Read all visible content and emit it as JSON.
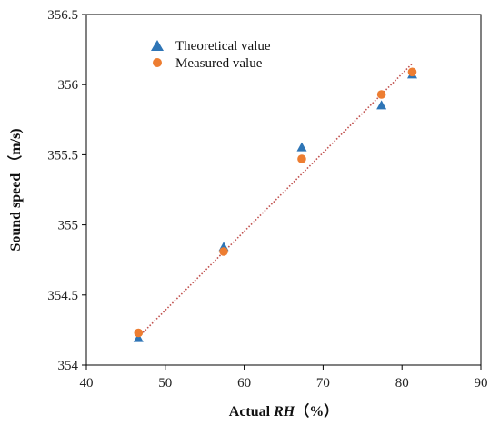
{
  "chart_data": {
    "type": "scatter",
    "xlabel_prefix": "Actual ",
    "xlabel_italic": "RH",
    "xlabel_suffix": "（%）",
    "ylabel": "Sound speed （m/s)",
    "xlim": [
      40,
      90
    ],
    "ylim": [
      354,
      356.5
    ],
    "xticks": [
      "40",
      "50",
      "60",
      "70",
      "80",
      "90"
    ],
    "yticks": [
      "354",
      "354.5",
      "355",
      "355.5",
      "356",
      "356.5"
    ],
    "legend_position": "top-left",
    "series": [
      {
        "name": "Theoretical value",
        "marker": "triangle",
        "color": "#2e75b6",
        "x": [
          46.6,
          57.4,
          67.3,
          77.4,
          81.3
        ],
        "y": [
          354.19,
          354.84,
          355.55,
          355.85,
          356.07
        ]
      },
      {
        "name": "Measured value",
        "marker": "circle",
        "color": "#ed7d31",
        "x": [
          46.6,
          57.4,
          67.3,
          77.4,
          81.3
        ],
        "y": [
          354.23,
          354.81,
          355.47,
          355.93,
          356.09
        ]
      }
    ],
    "trendline": {
      "style": "dotted",
      "color": "#c0504d",
      "x": [
        46.6,
        81.3
      ],
      "y": [
        354.2,
        356.15
      ]
    }
  }
}
